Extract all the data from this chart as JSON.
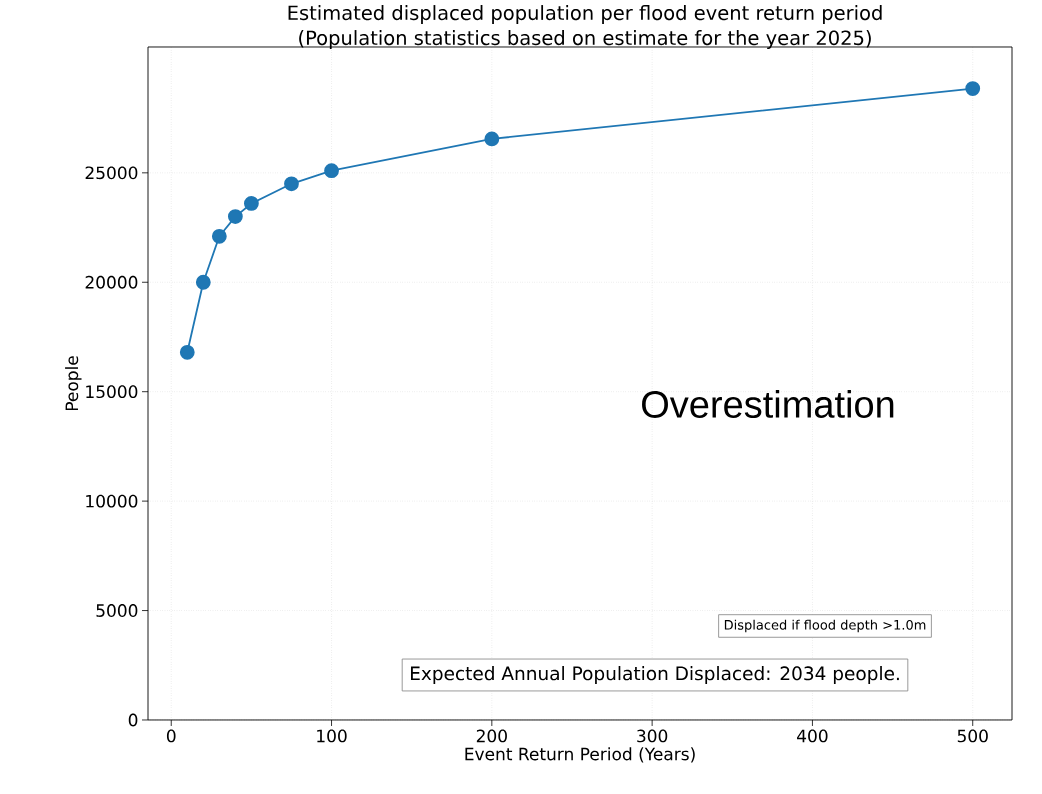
{
  "chart_data": {
    "type": "line",
    "title": "Estimated displaced population per flood event return period",
    "subtitle": "(Population statistics based on estimate for the year 2025)",
    "xlabel": "Event Return Period (Years)",
    "ylabel": "People",
    "x": [
      10,
      20,
      30,
      40,
      50,
      75,
      100,
      200,
      500
    ],
    "series": [
      {
        "color": "#1f77b4",
        "values": [
          16800,
          20000,
          22100,
          23000,
          23600,
          24500,
          25100,
          26550,
          28850
        ]
      }
    ],
    "xlim": [
      -14.5,
      524.5
    ],
    "ylim": [
      0,
      30750
    ],
    "xticks": [
      0,
      100,
      200,
      300,
      400,
      500
    ],
    "yticks": [
      0,
      5000,
      10000,
      15000,
      20000,
      25000
    ],
    "grid": true,
    "marker": "circle",
    "line_style": "solid",
    "annotations": [
      "Overestimation",
      "Displaced if flood depth >1.0m",
      "Expected Annual Population Displaced: 2034 people."
    ]
  }
}
